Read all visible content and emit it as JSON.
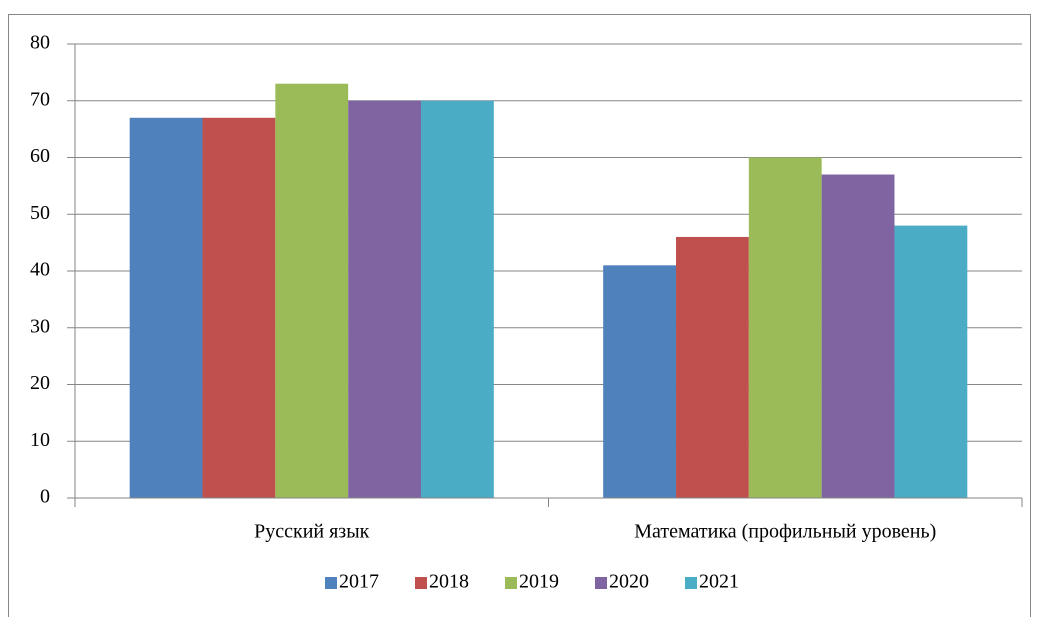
{
  "chart_data": {
    "type": "bar",
    "categories": [
      "Русский язык",
      "Математика (профильный уровень)"
    ],
    "series": [
      {
        "name": "2017",
        "color": "#4f81bd",
        "values": [
          67,
          41
        ]
      },
      {
        "name": "2018",
        "color": "#c0504d",
        "values": [
          67,
          46
        ]
      },
      {
        "name": "2019",
        "color": "#9bbb59",
        "values": [
          73,
          60
        ]
      },
      {
        "name": "2020",
        "color": "#8064a2",
        "values": [
          70,
          57
        ]
      },
      {
        "name": "2021",
        "color": "#4bacc6",
        "values": [
          70,
          48
        ]
      }
    ],
    "ylim": [
      0,
      80
    ],
    "yticks": [
      0,
      10,
      20,
      30,
      40,
      50,
      60,
      70,
      80
    ],
    "grid": true,
    "legend": "bottom"
  }
}
